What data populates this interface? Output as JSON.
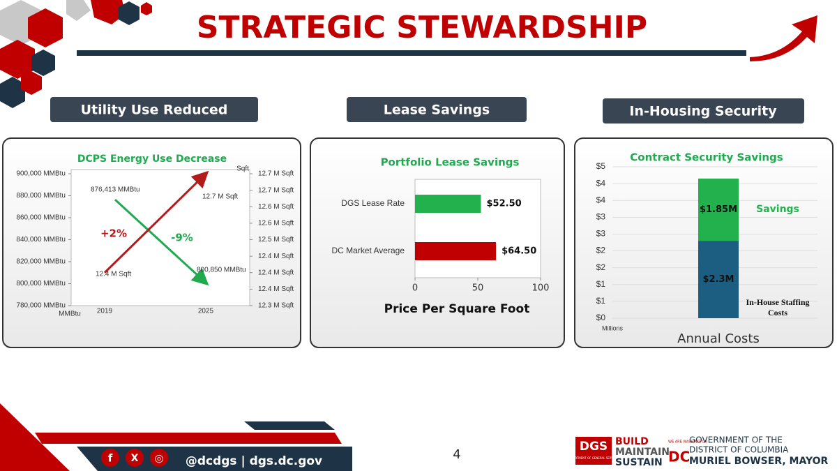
{
  "header": {
    "title": "STRATEGIC STEWARDSHIP"
  },
  "sections": [
    "Utility Use Reduced",
    "Lease Savings",
    "In-Housing Security"
  ],
  "chart_data": [
    {
      "type": "line",
      "title": "DCPS Energy Use Decrease",
      "x": [
        "2019",
        "2025"
      ],
      "y_unit": "MMBtu",
      "y2_unit": "Sqft",
      "ylim": [
        780000,
        900000
      ],
      "yticks": [
        {
          "value": 900000,
          "label": "900,000 MMBtu"
        },
        {
          "value": 880000,
          "label": "880,000 MMBtu"
        },
        {
          "value": 860000,
          "label": "860,000 MMBtu"
        },
        {
          "value": 840000,
          "label": "840,000 MMBtu"
        },
        {
          "value": 820000,
          "label": "820,000 MMBtu"
        },
        {
          "value": 800000,
          "label": "800,000 MMBtu"
        },
        {
          "value": 780000,
          "label": "780,000 MMBtu"
        }
      ],
      "y2lim": [
        12.3,
        12.7
      ],
      "y2ticks": [
        {
          "value": 12.7,
          "label": "12.7 M Sqft"
        },
        {
          "value": 12.65,
          "label": "12.7 M Sqft"
        },
        {
          "value": 12.6,
          "label": "12.6 M Sqft"
        },
        {
          "value": 12.55,
          "label": "12.6 M Sqft"
        },
        {
          "value": 12.5,
          "label": "12.5 M Sqft"
        },
        {
          "value": 12.45,
          "label": "12.4 M Sqft"
        },
        {
          "value": 12.4,
          "label": "12.4 M Sqft"
        },
        {
          "value": 12.35,
          "label": "12.4 M Sqft"
        },
        {
          "value": 12.3,
          "label": "12.3 M Sqft"
        }
      ],
      "series": [
        {
          "color": "#1faa4f",
          "values": [
            876413,
            800850
          ],
          "value_labels": [
            "876,413 MMBtu",
            "800,850 MMBtu"
          ]
        },
        {
          "color": "#b31b1b",
          "axis": "y2",
          "values": [
            12.4,
            12.7
          ],
          "value_labels": [
            "12.4 M Sqft",
            "12.7 M Sqft"
          ]
        }
      ],
      "annotations": [
        "+2%",
        "-9%"
      ]
    },
    {
      "type": "barh",
      "title": "Portfolio Lease Savings",
      "categories": [
        "DGS Lease Rate",
        "DC Market Average"
      ],
      "values": [
        52.5,
        64.5
      ],
      "value_labels": [
        "$52.50",
        "$64.50"
      ],
      "colors": [
        "#22b14c",
        "#c00000"
      ],
      "xlim": [
        0,
        100
      ],
      "xticks": [
        0,
        50,
        100
      ],
      "x_label": "Price Per Square Foot"
    },
    {
      "type": "stacked",
      "title": "Contract Security Savings",
      "categories": [
        null
      ],
      "x_label": "Annual Costs",
      "y_unit": "Millions",
      "ylim": [
        0,
        4.5
      ],
      "yticks": [
        {
          "value": 0,
          "label": "$0"
        },
        {
          "value": 0.5,
          "label": "$1"
        },
        {
          "value": 1,
          "label": "$1"
        },
        {
          "value": 1.5,
          "label": "$2"
        },
        {
          "value": 2,
          "label": "$2"
        },
        {
          "value": 2.5,
          "label": "$3"
        },
        {
          "value": 3,
          "label": "$3"
        },
        {
          "value": 3.5,
          "label": "$4"
        },
        {
          "value": 4,
          "label": "$4"
        },
        {
          "value": 4.5,
          "label": "$5"
        }
      ],
      "series": [
        {
          "name": "In-House Staffing Costs",
          "color": "#1b5e82",
          "values": [
            2.3
          ],
          "value_labels": [
            "$2.3M"
          ]
        },
        {
          "name": "Savings",
          "color": "#22b14c",
          "values": [
            1.85
          ],
          "value_labels": [
            "$1.85M"
          ]
        }
      ]
    }
  ],
  "footer": {
    "social": [
      "f",
      "X",
      "◎"
    ],
    "handle": "@dcdgs | dgs.dc.gov",
    "page": "4",
    "dgs": "DGS",
    "dgs_sub": "DEPARTMENT OF GENERAL SERVICES",
    "build": "BUILD",
    "maintain": "MAINTAIN",
    "sustain": "SUSTAIN",
    "we_are": "WE ARE WASHINGTON",
    "dc": "DC",
    "gov1": "GOVERNMENT OF THE",
    "gov2": "DISTRICT OF COLUMBIA",
    "mayor": "MURIEL BOWSER, MAYOR"
  }
}
